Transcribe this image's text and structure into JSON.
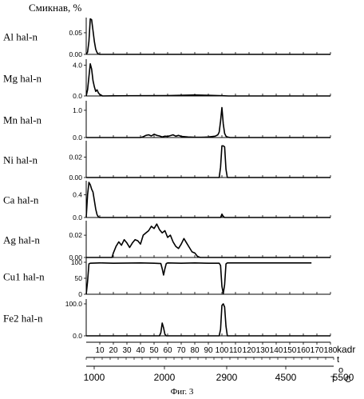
{
  "header": {
    "title": "Смикнав, %"
  },
  "caption": "Фиг. 3",
  "kadr_axis": {
    "label": "kadr",
    "ticks": [
      "10",
      "20",
      "30",
      "40",
      "50",
      "60",
      "70",
      "80",
      "90",
      "100",
      "110",
      "120",
      "130",
      "140",
      "150",
      "160",
      "170",
      "180"
    ]
  },
  "temp_axis": {
    "label_t": "t",
    "label_o": "o",
    "label_T": "T",
    "label_C": "C",
    "ticks": [
      "1000",
      "2000",
      "2900",
      "4500",
      "5500"
    ]
  },
  "chart_data": [
    {
      "type": "line",
      "title": "Al hal-n",
      "yticks": [
        "0.00",
        "0.05"
      ],
      "ylim": [
        0,
        0.085
      ],
      "x": [
        0,
        1,
        2,
        3,
        4,
        5,
        6,
        7,
        8,
        9,
        10,
        11,
        12,
        180
      ],
      "y": [
        0,
        0.005,
        0.03,
        0.082,
        0.08,
        0.055,
        0.03,
        0.012,
        0.004,
        0.001,
        0,
        0,
        0,
        0
      ]
    },
    {
      "type": "line",
      "title": "Mg hal-n",
      "yticks": [
        "0.0",
        "4.0"
      ],
      "ylim": [
        0,
        4.8
      ],
      "x": [
        0,
        1,
        2,
        3,
        4,
        5,
        6,
        7,
        8,
        9,
        10,
        11,
        12,
        20,
        60,
        80,
        90,
        100,
        105,
        110,
        180
      ],
      "y": [
        0,
        0.8,
        2.5,
        4.2,
        3.5,
        2.0,
        1.2,
        0.6,
        0.8,
        0.4,
        0.2,
        0.1,
        0,
        0.02,
        0.05,
        0.12,
        0.08,
        0.03,
        0,
        0,
        0
      ]
    },
    {
      "type": "line",
      "title": "Mn hal-n",
      "yticks": [
        "0.0",
        "1.0"
      ],
      "ylim": [
        0,
        1.35
      ],
      "x": [
        0,
        40,
        42,
        44,
        46,
        48,
        50,
        52,
        54,
        56,
        58,
        60,
        62,
        64,
        66,
        68,
        70,
        75,
        80,
        85,
        90,
        95,
        97,
        98,
        99,
        100,
        101,
        102,
        103,
        104,
        106,
        110,
        180
      ],
      "y": [
        0,
        0,
        0.03,
        0.08,
        0.1,
        0.06,
        0.12,
        0.08,
        0.06,
        0.02,
        0.05,
        0.04,
        0.07,
        0.1,
        0.05,
        0.08,
        0.04,
        0.02,
        0.01,
        0.01,
        0.02,
        0.05,
        0.1,
        0.2,
        0.6,
        1.1,
        0.5,
        0.15,
        0.05,
        0.02,
        0,
        0,
        0
      ]
    },
    {
      "type": "line",
      "title": "Ni hal-n",
      "yticks": [
        "0.00",
        "0.02"
      ],
      "ylim": [
        0,
        0.036
      ],
      "x": [
        0,
        98,
        99,
        100,
        101,
        102,
        103,
        104,
        180
      ],
      "y": [
        0,
        0,
        0.01,
        0.031,
        0.031,
        0.03,
        0.008,
        0,
        0
      ]
    },
    {
      "type": "line",
      "title": "Ca hal-n",
      "yticks": [
        "0.0",
        "0.4"
      ],
      "ylim": [
        0,
        0.65
      ],
      "x": [
        0,
        1,
        2,
        3,
        4,
        5,
        6,
        7,
        8,
        9,
        10,
        11,
        12,
        99,
        100,
        101,
        102,
        180
      ],
      "y": [
        0,
        0.4,
        0.62,
        0.58,
        0.5,
        0.45,
        0.3,
        0.15,
        0.05,
        0.01,
        0,
        0,
        0,
        0,
        0.06,
        0.02,
        0,
        0
      ]
    },
    {
      "type": "line",
      "title": "Ag hal-n",
      "yticks": [
        "0.00",
        "0.02"
      ],
      "ylim": [
        0,
        0.033
      ],
      "x": [
        0,
        19,
        20,
        22,
        24,
        26,
        28,
        30,
        32,
        34,
        36,
        38,
        40,
        42,
        44,
        46,
        48,
        50,
        52,
        54,
        56,
        58,
        60,
        62,
        64,
        66,
        68,
        70,
        72,
        74,
        76,
        78,
        80,
        82,
        84,
        180
      ],
      "y": [
        0,
        0,
        0.004,
        0.01,
        0.014,
        0.011,
        0.016,
        0.013,
        0.009,
        0.013,
        0.016,
        0.015,
        0.012,
        0.02,
        0.022,
        0.024,
        0.028,
        0.026,
        0.03,
        0.025,
        0.022,
        0.024,
        0.018,
        0.02,
        0.014,
        0.01,
        0.008,
        0.012,
        0.017,
        0.013,
        0.009,
        0.005,
        0.004,
        0.001,
        0,
        0
      ]
    },
    {
      "type": "line",
      "title": "Cu1 hal-n",
      "yticks": [
        "0",
        "50",
        "100"
      ],
      "ylim": [
        0,
        115
      ],
      "x": [
        0,
        1,
        2,
        3,
        10,
        20,
        40,
        50,
        55,
        56,
        57,
        58,
        59,
        60,
        70,
        80,
        90,
        98,
        99,
        100,
        101,
        102,
        103,
        104,
        110,
        140,
        160,
        166
      ],
      "y": [
        0,
        40,
        95,
        97,
        98,
        97,
        98,
        97,
        96,
        80,
        60,
        80,
        96,
        98,
        97,
        98,
        97,
        97,
        90,
        25,
        2,
        30,
        95,
        98,
        98,
        98,
        98,
        98
      ]
    },
    {
      "type": "line",
      "title": "Fe2 hal-n",
      "yticks": [
        "0.0",
        "100.0"
      ],
      "ylim": [
        0,
        115
      ],
      "x": [
        0,
        54,
        55,
        56,
        57,
        58,
        59,
        98,
        99,
        100,
        101,
        102,
        103,
        104,
        180
      ],
      "y": [
        0,
        0,
        10,
        40,
        25,
        5,
        0,
        0,
        20,
        95,
        100,
        90,
        30,
        0,
        0
      ]
    }
  ]
}
